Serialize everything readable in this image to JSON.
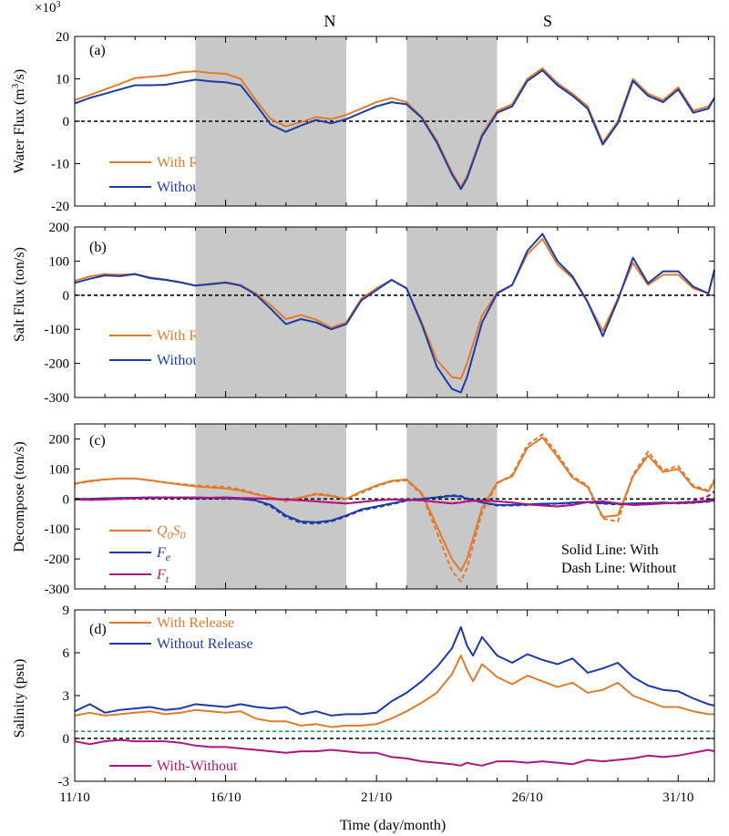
{
  "colors": {
    "with": "#E07B2E",
    "without": "#1A3BA8",
    "ft": "#B0157F",
    "diffDash": "#2E9E5B",
    "shade": "#C8C8C8"
  },
  "figure": {
    "region_labels": [
      "N",
      "S"
    ],
    "scale_label": "×10",
    "scale_exp": "3",
    "x_tick_labels": [
      "11/10",
      "16/10",
      "21/10",
      "26/10",
      "31/10"
    ],
    "xlabel": "Time (day/month)"
  },
  "chart_data": [
    {
      "type": "line",
      "panel": "(a)",
      "title": "",
      "xlabel": "Time (day/month)",
      "ylabel": "Water Flux (m³/s)",
      "ylabel_base": "Water Flux (m",
      "ylabel_sup": "3",
      "ylabel_end": "/s)",
      "xlim": [
        11,
        32.2
      ],
      "ylim": [
        -20,
        20
      ],
      "y_ticks": [
        -20,
        -10,
        0,
        10,
        20
      ],
      "shaded_x": [
        [
          15,
          20
        ],
        [
          22,
          25
        ]
      ],
      "x": [
        11,
        11.5,
        12,
        12.5,
        13,
        13.5,
        14,
        14.5,
        15,
        15.5,
        16,
        16.5,
        17,
        17.5,
        18,
        18.5,
        19,
        19.5,
        20,
        20.5,
        21,
        21.5,
        22,
        22.5,
        23,
        23.5,
        23.8,
        24,
        24.5,
        25,
        25.5,
        26,
        26.5,
        27,
        27.5,
        28,
        28.5,
        29,
        29.5,
        30,
        30.5,
        31,
        31.5,
        32,
        32.2
      ],
      "series": [
        {
          "name": "With Release",
          "color": "with",
          "dash": false,
          "values": [
            5,
            6.2,
            7.5,
            8.8,
            10.2,
            10.5,
            10.8,
            11.5,
            11.8,
            11.4,
            11.2,
            10,
            5,
            0.5,
            -1.2,
            -0.2,
            1,
            0.5,
            1.5,
            3,
            4.5,
            5.5,
            4.5,
            1,
            -4.5,
            -12,
            -15.5,
            -13,
            -3,
            2.5,
            4,
            10,
            12.5,
            9,
            6.5,
            3.5,
            -5,
            0,
            10,
            6.5,
            5,
            8,
            2.5,
            3.5,
            5.5
          ]
        },
        {
          "name": "Without Release",
          "color": "without",
          "dash": false,
          "values": [
            4.2,
            5.5,
            6.5,
            7.5,
            8.5,
            8.5,
            8.6,
            9.2,
            9.8,
            9.4,
            9.2,
            8.5,
            4,
            -0.8,
            -2.5,
            -1,
            0.3,
            -0.5,
            0.5,
            2,
            3.5,
            4.5,
            4,
            0.8,
            -5,
            -12.5,
            -16,
            -13.5,
            -3.5,
            2,
            3.5,
            9.5,
            12,
            8.5,
            6,
            3,
            -5.5,
            -0.5,
            9.5,
            6,
            4.5,
            7.5,
            2,
            3,
            5.5
          ]
        }
      ],
      "legend": {
        "location": "lower-left",
        "entries": [
          "With Release",
          "Without Release"
        ]
      }
    },
    {
      "type": "line",
      "panel": "(b)",
      "title": "",
      "xlabel": "Time (day/month)",
      "ylabel": "Salt Flux (ton/s)",
      "xlim": [
        11,
        32.2
      ],
      "ylim": [
        -300,
        200
      ],
      "y_ticks": [
        -300,
        -200,
        -100,
        0,
        100,
        200
      ],
      "shaded_x": [
        [
          15,
          20
        ],
        [
          22,
          25
        ]
      ],
      "x": [
        11,
        11.5,
        12,
        12.5,
        13,
        13.5,
        14,
        14.5,
        15,
        15.5,
        16,
        16.5,
        17,
        17.5,
        18,
        18.5,
        19,
        19.5,
        20,
        20.5,
        21,
        21.5,
        22,
        22.5,
        23,
        23.5,
        23.8,
        24,
        24.5,
        25,
        25.5,
        26,
        26.5,
        27,
        27.5,
        28,
        28.5,
        29,
        29.5,
        30,
        30.5,
        31,
        31.5,
        32,
        32.2
      ],
      "series": [
        {
          "name": "With Release",
          "color": "with",
          "dash": false,
          "values": [
            42,
            55,
            62,
            60,
            62,
            52,
            46,
            38,
            28,
            34,
            38,
            30,
            5,
            -30,
            -70,
            -58,
            -72,
            -95,
            -80,
            -10,
            20,
            45,
            20,
            -80,
            -190,
            -240,
            -245,
            -200,
            -60,
            8,
            30,
            120,
            165,
            90,
            50,
            -20,
            -105,
            -10,
            95,
            30,
            60,
            60,
            20,
            5,
            70
          ]
        },
        {
          "name": "Without Release",
          "color": "without",
          "dash": false,
          "values": [
            36,
            48,
            58,
            56,
            62,
            50,
            45,
            38,
            28,
            32,
            37,
            28,
            2,
            -40,
            -85,
            -70,
            -80,
            -100,
            -85,
            -15,
            15,
            45,
            20,
            -85,
            -210,
            -275,
            -285,
            -240,
            -80,
            5,
            30,
            130,
            180,
            100,
            55,
            -20,
            -120,
            -15,
            110,
            35,
            70,
            70,
            25,
            5,
            75
          ]
        }
      ],
      "legend": {
        "location": "lower-left",
        "entries": [
          "With Release",
          "Without Release"
        ]
      }
    },
    {
      "type": "line",
      "panel": "(c)",
      "title": "",
      "xlabel": "Time (day/month)",
      "ylabel": "Decompose (ton/s)",
      "xlim": [
        11,
        32.2
      ],
      "ylim": [
        -300,
        250
      ],
      "y_ticks": [
        -300,
        -200,
        -100,
        0,
        100,
        200
      ],
      "shaded_x": [
        [
          15,
          20
        ],
        [
          22,
          25
        ]
      ],
      "note_solid": "Solid Line: With",
      "note_dash": "Dash Line: Without",
      "x": [
        11,
        11.5,
        12,
        12.5,
        13,
        13.5,
        14,
        14.5,
        15,
        15.5,
        16,
        16.5,
        17,
        17.5,
        18,
        18.5,
        19,
        19.5,
        20,
        20.5,
        21,
        21.5,
        22,
        22.5,
        23,
        23.5,
        23.8,
        24,
        24.5,
        25,
        25.5,
        26,
        26.5,
        27,
        27.5,
        28,
        28.5,
        29,
        29.5,
        30,
        30.5,
        31,
        31.5,
        32,
        32.2
      ],
      "series": [
        {
          "name": "Q0S0",
          "color": "with",
          "dash": false,
          "values": [
            52,
            60,
            65,
            68,
            68,
            62,
            55,
            48,
            42,
            38,
            35,
            28,
            15,
            5,
            -5,
            5,
            15,
            10,
            0,
            25,
            45,
            60,
            65,
            20,
            -90,
            -200,
            -240,
            -200,
            -30,
            55,
            75,
            170,
            205,
            140,
            70,
            40,
            -60,
            -55,
            75,
            145,
            90,
            100,
            40,
            25,
            60
          ]
        },
        {
          "name": "Q0S0 (Without)",
          "color": "with",
          "dash": true,
          "values": [
            50,
            58,
            65,
            68,
            68,
            62,
            55,
            50,
            45,
            42,
            40,
            32,
            18,
            5,
            -8,
            5,
            18,
            12,
            0,
            20,
            42,
            58,
            62,
            15,
            -110,
            -240,
            -275,
            -230,
            -45,
            52,
            80,
            180,
            215,
            150,
            75,
            45,
            -65,
            -75,
            80,
            158,
            95,
            110,
            45,
            28,
            65
          ]
        },
        {
          "name": "Fe",
          "color": "without",
          "dash": false,
          "values": [
            0,
            0,
            2,
            3,
            4,
            5,
            5,
            4,
            2,
            3,
            2,
            0,
            -5,
            -20,
            -55,
            -75,
            -78,
            -72,
            -55,
            -35,
            -25,
            -15,
            -5,
            0,
            5,
            10,
            8,
            0,
            -12,
            -20,
            -20,
            -18,
            -16,
            -15,
            -12,
            -10,
            -14,
            -16,
            -15,
            -14,
            -12,
            -14,
            -12,
            -8,
            -5
          ]
        },
        {
          "name": "Fe (Without)",
          "color": "without",
          "dash": true,
          "values": [
            0,
            0,
            2,
            3,
            4,
            5,
            5,
            4,
            2,
            3,
            2,
            0,
            -5,
            -25,
            -60,
            -80,
            -82,
            -75,
            -58,
            -38,
            -28,
            -18,
            -6,
            0,
            6,
            12,
            10,
            2,
            -12,
            -22,
            -22,
            -20,
            -18,
            -16,
            -14,
            -12,
            -16,
            -18,
            -17,
            -15,
            -13,
            -15,
            -13,
            -9,
            -6
          ]
        },
        {
          "name": "Ft",
          "color": "ft",
          "dash": false,
          "values": [
            -2,
            -3,
            -2,
            0,
            2,
            3,
            4,
            5,
            5,
            4,
            5,
            3,
            2,
            0,
            -2,
            -5,
            -8,
            -12,
            -15,
            -10,
            -5,
            -2,
            -3,
            -5,
            -10,
            -15,
            -12,
            -8,
            -5,
            -8,
            -12,
            -18,
            -22,
            -25,
            -20,
            -10,
            -8,
            -15,
            -20,
            -18,
            -15,
            -12,
            -10,
            -5,
            -5
          ]
        },
        {
          "name": "Ft (Without)",
          "color": "ft",
          "dash": true,
          "values": [
            -2,
            -3,
            -2,
            0,
            2,
            3,
            4,
            5,
            5,
            4,
            5,
            3,
            2,
            0,
            -2,
            -5,
            -8,
            -12,
            -15,
            -10,
            -5,
            -2,
            -3,
            -5,
            -10,
            -15,
            -12,
            -8,
            -5,
            -8,
            -12,
            -18,
            -22,
            -25,
            -20,
            -10,
            -8,
            -15,
            -20,
            -18,
            -15,
            -12,
            -8,
            10,
            25
          ]
        }
      ],
      "legend": {
        "location": "lower-left",
        "entries": [
          "Q0S0",
          "Fe",
          "Ft"
        ]
      }
    },
    {
      "type": "line",
      "panel": "(d)",
      "title": "",
      "xlabel": "Time (day/month)",
      "ylabel": "Salinity (psu)",
      "xlim": [
        11,
        32.2
      ],
      "ylim": [
        -3,
        9
      ],
      "y_ticks": [
        -3,
        0,
        3,
        6,
        9
      ],
      "reference_lines": [
        {
          "y": 0,
          "color": "#000000"
        },
        {
          "y": 0.5,
          "color": "diffDash"
        }
      ],
      "x": [
        11,
        11.5,
        12,
        12.5,
        13,
        13.5,
        14,
        14.5,
        15,
        15.5,
        16,
        16.5,
        17,
        17.5,
        18,
        18.5,
        19,
        19.5,
        20,
        20.5,
        21,
        21.5,
        22,
        22.5,
        23,
        23.5,
        23.8,
        24,
        24.2,
        24.5,
        25,
        25.5,
        26,
        26.5,
        27,
        27.5,
        28,
        28.5,
        29,
        29.5,
        30,
        30.5,
        31,
        31.5,
        32,
        32.2
      ],
      "series": [
        {
          "name": "With Release",
          "color": "with",
          "dash": false,
          "values": [
            1.6,
            1.8,
            1.6,
            1.7,
            1.8,
            1.9,
            1.7,
            1.8,
            2,
            1.9,
            1.8,
            1.9,
            1.4,
            1.2,
            1.2,
            0.9,
            1,
            0.8,
            0.9,
            0.9,
            1,
            1.4,
            1.9,
            2.5,
            3.2,
            4.5,
            5.8,
            4.8,
            4,
            5.2,
            4.3,
            3.8,
            4.4,
            4,
            3.6,
            3.9,
            3.2,
            3.4,
            3.9,
            3,
            2.6,
            2.2,
            2.2,
            1.9,
            1.7,
            1.7
          ]
        },
        {
          "name": "Without Release",
          "color": "without",
          "dash": false,
          "values": [
            1.9,
            2.4,
            1.8,
            2,
            2.1,
            2.2,
            2,
            2.1,
            2.4,
            2.3,
            2.2,
            2.4,
            2.2,
            2.1,
            2.2,
            1.7,
            1.9,
            1.6,
            1.7,
            1.7,
            1.8,
            2.6,
            3.2,
            4,
            5,
            6.3,
            7.8,
            6.5,
            5.8,
            7.1,
            5.8,
            5.3,
            5.9,
            5.5,
            5.2,
            5.6,
            4.6,
            4.9,
            5.3,
            4.3,
            3.7,
            3.4,
            3.3,
            2.8,
            2.4,
            2.3
          ]
        },
        {
          "name": "With-Without",
          "color": "ft",
          "dash": false,
          "values": [
            -0.2,
            -0.4,
            -0.2,
            -0.1,
            -0.2,
            -0.2,
            -0.2,
            -0.3,
            -0.5,
            -0.6,
            -0.6,
            -0.7,
            -0.8,
            -0.9,
            -1,
            -0.9,
            -0.9,
            -0.8,
            -0.9,
            -1,
            -1,
            -1.3,
            -1.4,
            -1.6,
            -1.7,
            -1.8,
            -1.9,
            -1.7,
            -1.8,
            -1.9,
            -1.6,
            -1.6,
            -1.7,
            -1.6,
            -1.7,
            -1.8,
            -1.5,
            -1.6,
            -1.5,
            -1.4,
            -1.2,
            -1.3,
            -1.2,
            -1,
            -0.8,
            -0.9
          ]
        }
      ],
      "legend": {
        "location": "upper-left / lower-left",
        "entries": [
          "With Release",
          "Without Release",
          "With-Without"
        ]
      }
    }
  ]
}
